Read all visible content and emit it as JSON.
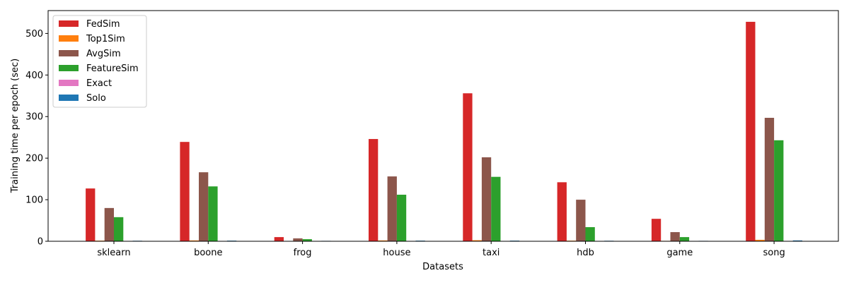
{
  "chart_data": {
    "type": "bar",
    "xlabel": "Datasets",
    "ylabel": "Training time per epoch (sec)",
    "categories": [
      "sklearn",
      "boone",
      "frog",
      "house",
      "taxi",
      "hdb",
      "game",
      "song"
    ],
    "ylim": [
      0,
      555
    ],
    "yticks": [
      0,
      100,
      200,
      300,
      400,
      500
    ],
    "grid": false,
    "legend_position": "top-left",
    "series": [
      {
        "name": "FedSim",
        "color": "#d62728",
        "values": [
          127,
          239,
          10,
          246,
          356,
          142,
          54,
          528
        ]
      },
      {
        "name": "Top1Sim",
        "color": "#ff7f0e",
        "values": [
          1.5,
          2,
          0.5,
          2,
          2.5,
          1.5,
          1,
          3.5
        ]
      },
      {
        "name": "AvgSim",
        "color": "#8c564b",
        "values": [
          80,
          166,
          7,
          156,
          202,
          100,
          22,
          297
        ]
      },
      {
        "name": "FeatureSim",
        "color": "#2ca02c",
        "values": [
          58,
          132,
          5,
          112,
          155,
          34,
          10,
          243
        ]
      },
      {
        "name": "Exact",
        "color": "#e377c2",
        "values": [
          0.5,
          0.5,
          0.2,
          0.5,
          0.5,
          0.5,
          0.3,
          0.8
        ]
      },
      {
        "name": "Solo",
        "color": "#1f77b4",
        "values": [
          1.2,
          1.5,
          1.0,
          1.5,
          1.5,
          1.2,
          1.0,
          2.0
        ]
      }
    ]
  }
}
